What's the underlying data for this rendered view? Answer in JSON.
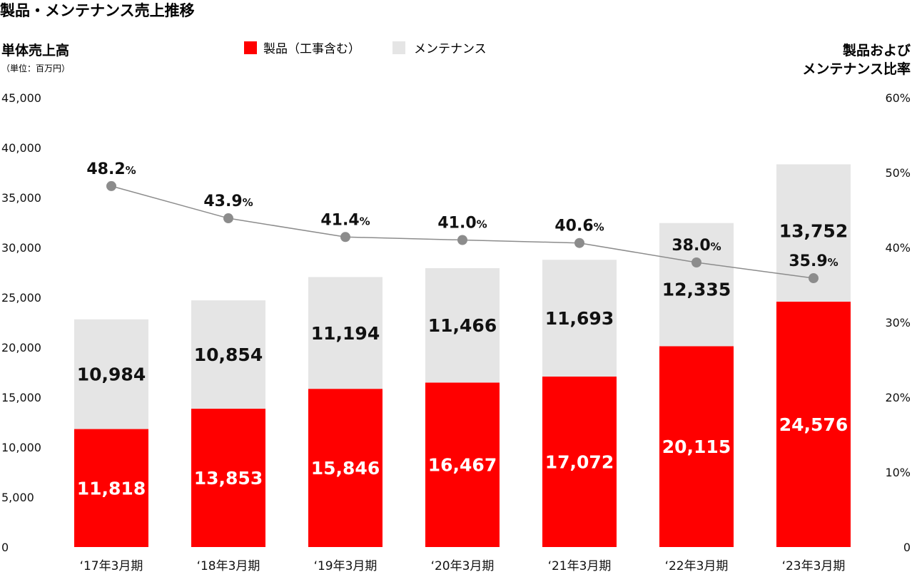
{
  "title": "製品・メンテナンス売上推移",
  "left_axis": {
    "label": "単体売上高",
    "unit": "（単位：百万円）"
  },
  "right_axis": {
    "label_line1": "製品および",
    "label_line2": "メンテナンス比率"
  },
  "legend": [
    {
      "label": "製品（工事含む）",
      "color": "#ff0000"
    },
    {
      "label": "メンテナンス",
      "color": "#e5e5e5"
    }
  ],
  "chart_data": {
    "type": "bar",
    "stacked": true,
    "categories": [
      "‘17年3月期",
      "‘18年3月期",
      "‘19年3月期",
      "‘20年3月期",
      "‘21年3月期",
      "‘22年3月期",
      "‘23年3月期"
    ],
    "series": [
      {
        "name": "製品（工事含む）",
        "color": "#ff0000",
        "values": [
          11818,
          13853,
          15846,
          16467,
          17072,
          20115,
          24576
        ]
      },
      {
        "name": "メンテナンス",
        "color": "#e5e5e5",
        "values": [
          10984,
          10854,
          11194,
          11466,
          11693,
          12335,
          13752
        ]
      }
    ],
    "line_series": {
      "name": "メンテナンス比率",
      "axis": "right",
      "unit": "%",
      "values": [
        48.2,
        43.9,
        41.4,
        41.0,
        40.6,
        38.0,
        35.9
      ],
      "color": "#8c8c8c"
    },
    "left_ticks": [
      "0",
      "5,000",
      "10,000",
      "15,000",
      "20,000",
      "25,000",
      "30,000",
      "35,000",
      "40,000",
      "45,000"
    ],
    "right_ticks": [
      "0",
      "10%",
      "20%",
      "30%",
      "40%",
      "50%",
      "60%"
    ],
    "ylim_left": [
      0,
      45000
    ],
    "ylim_right": [
      0,
      60
    ]
  }
}
